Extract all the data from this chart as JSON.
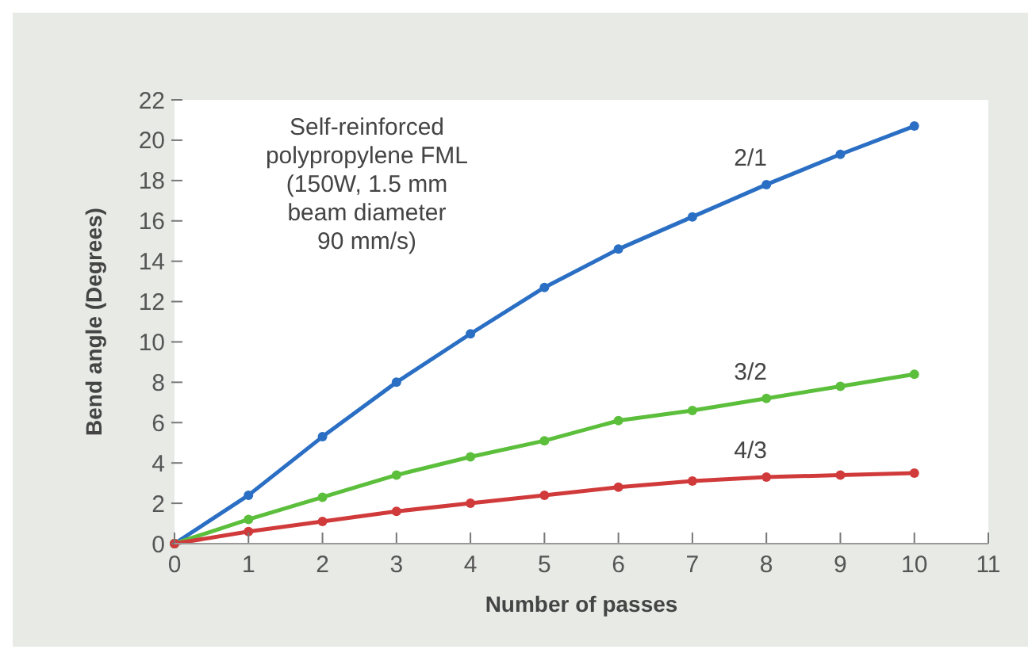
{
  "chart_data": {
    "type": "line",
    "xlabel": "Number of passes",
    "ylabel": "Bend angle (Degrees)",
    "x": [
      0,
      1,
      2,
      3,
      4,
      5,
      6,
      7,
      8,
      9,
      10
    ],
    "xlim": [
      0,
      11
    ],
    "xticks": [
      0,
      1,
      2,
      3,
      4,
      5,
      6,
      7,
      8,
      9,
      10,
      11
    ],
    "ylim": [
      0,
      22
    ],
    "yticks": [
      0,
      2,
      4,
      6,
      8,
      10,
      12,
      14,
      16,
      18,
      20,
      22
    ],
    "marker": "circle",
    "grid": false,
    "annotations": [
      "Self-reinforced\npolypropylene FML\n(150W, 1.5 mm\nbeam diameter\n90 mm/s)"
    ],
    "series": [
      {
        "name": "2/1",
        "color": "#2a6fc4",
        "values": [
          0,
          2.4,
          5.3,
          8,
          10.4,
          12.7,
          14.6,
          16.2,
          17.8,
          19.3,
          20.7
        ]
      },
      {
        "name": "3/2",
        "color": "#5cbf3c",
        "values": [
          0,
          1.2,
          2.3,
          3.4,
          4.3,
          5.1,
          6.1,
          6.6,
          7.2,
          7.8,
          8.4
        ]
      },
      {
        "name": "4/3",
        "color": "#d13a3a",
        "values": [
          0,
          0.6,
          1.1,
          1.6,
          2.0,
          2.4,
          2.8,
          3.1,
          3.3,
          3.4,
          3.5
        ]
      }
    ]
  }
}
